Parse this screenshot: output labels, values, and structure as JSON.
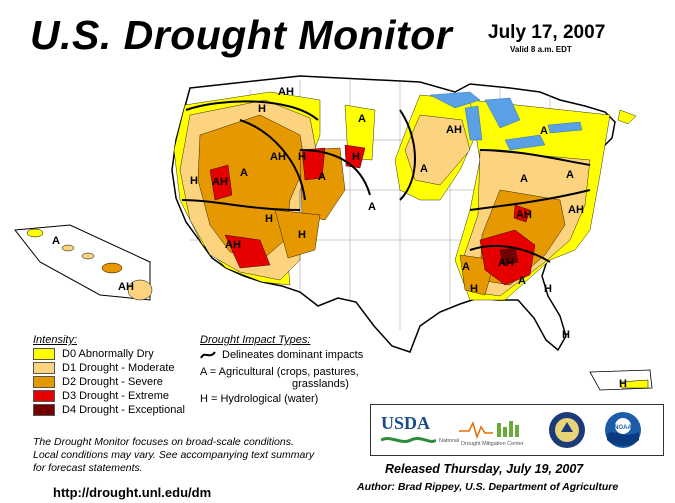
{
  "header": {
    "title": "U.S. Drought Monitor",
    "date": "July 17, 2007",
    "valid": "Valid 8 a.m. EDT"
  },
  "legend": {
    "intensity_title": "Intensity:",
    "items": [
      {
        "label": "D0 Abnormally Dry",
        "color": "#ffff00"
      },
      {
        "label": "D1 Drought - Moderate",
        "color": "#fcd37f"
      },
      {
        "label": "D2 Drought - Severe",
        "color": "#e69800"
      },
      {
        "label": "D3 Drought - Extreme",
        "color": "#e60000"
      },
      {
        "label": "D4 Drought - Exceptional",
        "color": "#730000"
      }
    ],
    "impact_title": "Drought Impact Types:",
    "impact_line": "Delineates dominant impacts",
    "impact_a1": "A = Agricultural (crops, pastures,",
    "impact_a2": "grasslands)",
    "impact_h": "H = Hydrological (water)"
  },
  "note": {
    "line1": "The Drought Monitor focuses on broad-scale conditions.",
    "line2": "Local conditions may vary. See accompanying text summary",
    "line3": "for forecast statements."
  },
  "footer": {
    "url": "http://drought.unl.edu/dm",
    "released": "Released Thursday, July 19, 2007",
    "author": "Author: Brad Rippey, U.S. Department of Agriculture"
  },
  "logos": {
    "usda": "USDA",
    "ndmc_1": "National",
    "ndmc_2": "Drought Mitigation",
    "ndmc_3": "Center",
    "noaa": "NOAA"
  },
  "map_labels": {
    "A": "A",
    "H": "H",
    "AH": "AH"
  }
}
